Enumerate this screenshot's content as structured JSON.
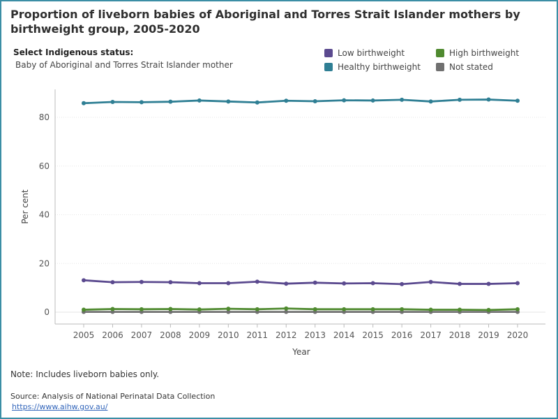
{
  "title": "Proportion of liveborn babies of Aboriginal and Torres Strait Islander mothers by birthweight group, 2005-2020",
  "filter": {
    "label": "Select Indigenous status:",
    "value": "Baby of Aboriginal and Torres Strait Islander mother"
  },
  "legend": [
    {
      "label": "Low birthweight",
      "color": "#5b4a8f"
    },
    {
      "label": "High birthweight",
      "color": "#4f8a2f"
    },
    {
      "label": "Healthy birthweight",
      "color": "#2f7f94"
    },
    {
      "label": "Not stated",
      "color": "#707070"
    }
  ],
  "chart_data": {
    "type": "line",
    "title": "Proportion of liveborn babies of Aboriginal and Torres Strait Islander mothers by birthweight group, 2005-2020",
    "xlabel": "Year",
    "ylabel": "Per cent",
    "x": [
      "2005",
      "2006",
      "2007",
      "2008",
      "2009",
      "2010",
      "2011",
      "2012",
      "2013",
      "2014",
      "2015",
      "2016",
      "2017",
      "2018",
      "2019",
      "2020"
    ],
    "ylim": [
      0,
      90
    ],
    "yticks": [
      0,
      20,
      40,
      60,
      80
    ],
    "grid": "horizontal",
    "legend_position": "top-right",
    "series": [
      {
        "name": "Healthy birthweight",
        "color": "#2f7f94",
        "values": [
          85.8,
          86.3,
          86.2,
          86.4,
          86.9,
          86.5,
          86.1,
          86.8,
          86.6,
          87.0,
          86.9,
          87.2,
          86.5,
          87.2,
          87.3,
          86.8
        ]
      },
      {
        "name": "Low birthweight",
        "color": "#5b4a8f",
        "values": [
          13.1,
          12.3,
          12.4,
          12.3,
          11.9,
          11.9,
          12.5,
          11.7,
          12.1,
          11.8,
          11.9,
          11.5,
          12.4,
          11.6,
          11.6,
          11.9
        ]
      },
      {
        "name": "High birthweight",
        "color": "#4f8a2f",
        "values": [
          1.0,
          1.3,
          1.2,
          1.3,
          1.1,
          1.4,
          1.2,
          1.5,
          1.2,
          1.2,
          1.2,
          1.2,
          1.0,
          1.0,
          0.9,
          1.2
        ]
      },
      {
        "name": "Not stated",
        "color": "#707070",
        "values": [
          0.1,
          0.1,
          0.1,
          0.1,
          0.1,
          0.1,
          0.1,
          0.1,
          0.1,
          0.1,
          0.1,
          0.1,
          0.1,
          0.1,
          0.1,
          0.1
        ]
      }
    ]
  },
  "footer": {
    "note": "Note: Includes liveborn babies only.",
    "source": "Source: Analysis of National Perinatal Data Collection",
    "link": "https://www.aihw.gov.au/"
  }
}
